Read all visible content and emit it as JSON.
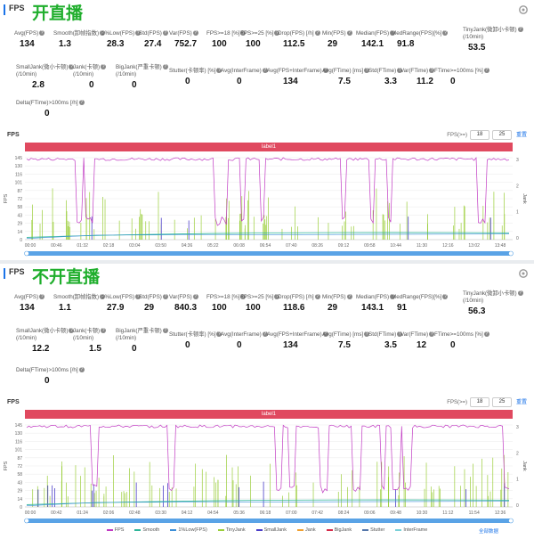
{
  "panels": [
    {
      "section": "FPS",
      "title": "开直播",
      "row1": [
        {
          "label": "Avg(FPS)",
          "value": "134"
        },
        {
          "label": "Smooth(卸帧指数)",
          "value": "1.3"
        },
        {
          "label": "1%Low(FPS)",
          "value": "28.3"
        },
        {
          "label": "Std(FPS)",
          "value": "27.4"
        },
        {
          "label": "Var(FPS)",
          "value": "752.7"
        },
        {
          "label": "FPS>=18 [%]",
          "value": "100"
        },
        {
          "label": "FPS>=25 [%]",
          "value": "100"
        },
        {
          "label": "Drop(FPS) [/h]",
          "value": "112.5"
        },
        {
          "label": "Min(FPS)",
          "value": "29"
        },
        {
          "label": "Median(FPS)",
          "value": "142.1"
        },
        {
          "label": "MedRange(FPS)[%]",
          "value": "91.8"
        },
        {
          "label": "TinyJank(微卸小卡顿)",
          "label2": "(/10min)",
          "value": "53.5"
        }
      ],
      "row2": [
        {
          "label": "SmallJank(微小卡顿)",
          "label2": "(/10min)",
          "value": "2.8"
        },
        {
          "label": "Jank(卡顿)",
          "label2": "(/10min)",
          "value": "0"
        },
        {
          "label": "BigJank(严重卡顿)",
          "label2": "(/10min)",
          "value": "0"
        },
        {
          "label": "Stutter(卡顿率) [%]",
          "value": "0"
        },
        {
          "label": "Avg(InterFrame)",
          "value": "0"
        },
        {
          "label": "Avg(FPS+InterFrame)",
          "value": "134"
        },
        {
          "label": "Avg(FTime) [ms]",
          "value": "7.5"
        },
        {
          "label": "Std(FTime)",
          "value": "3.3"
        },
        {
          "label": "Var(FTime)",
          "value": "11.2"
        },
        {
          "label": "FTime>=100ms [%]",
          "value": "0"
        }
      ],
      "row3": [
        {
          "label": "Delta(FTime)>100ms [/h]",
          "value": "0"
        }
      ],
      "chart_title": "FPS",
      "fps_filter": {
        "label": "FPS(>=)",
        "a": "18",
        "b": "25",
        "reset": "重置"
      },
      "bar_label": "label1",
      "yticks": [
        "145",
        "130",
        "116",
        "101",
        "87",
        "72",
        "58",
        "43",
        "29",
        "14",
        "0"
      ],
      "yaxis": "FPS",
      "rticks": [
        "3",
        "2",
        "1",
        "0"
      ],
      "raxis": "Jank",
      "xticks": [
        "00:00",
        "00:46",
        "01:32",
        "02:18",
        "03:04",
        "03:50",
        "04:36",
        "05:22",
        "06:08",
        "06:54",
        "07:40",
        "08:26",
        "09:12",
        "09:58",
        "10:44",
        "11:30",
        "12:16",
        "13:02",
        "13:48"
      ],
      "reset_zoom": "全部数据",
      "chart_data": {
        "type": "line",
        "series": [
          {
            "name": "FPS",
            "description": "mostly ~142 with frequent drops to ~30"
          }
        ]
      }
    },
    {
      "section": "FPS",
      "title": "不开直播",
      "row1": [
        {
          "label": "Avg(FPS)",
          "value": "134"
        },
        {
          "label": "Smooth(卸帧指数)",
          "value": "1.1"
        },
        {
          "label": "1%Low(FPS)",
          "value": "27.9"
        },
        {
          "label": "Std(FPS)",
          "value": "29"
        },
        {
          "label": "Var(FPS)",
          "value": "840.3"
        },
        {
          "label": "FPS>=18 [%]",
          "value": "100"
        },
        {
          "label": "FPS>=25 [%]",
          "value": "100"
        },
        {
          "label": "Drop(FPS) [/h]",
          "value": "118.6"
        },
        {
          "label": "Min(FPS)",
          "value": "29"
        },
        {
          "label": "Median(FPS)",
          "value": "143.1"
        },
        {
          "label": "MedRange(FPS)[%]",
          "value": "91"
        },
        {
          "label": "TinyJank(微卸小卡顿)",
          "label2": "(/10min)",
          "value": "56.3"
        }
      ],
      "row2": [
        {
          "label": "SmallJank(微小卡顿)",
          "label2": "(/10min)",
          "value": "12.2"
        },
        {
          "label": "Jank(卡顿)",
          "label2": "(/10min)",
          "value": "1.5"
        },
        {
          "label": "BigJank(严重卡顿)",
          "label2": "(/10min)",
          "value": "0"
        },
        {
          "label": "Stutter(卡顿率) [%]",
          "value": "0"
        },
        {
          "label": "Avg(InterFrame)",
          "value": "0"
        },
        {
          "label": "Avg(FPS+InterFrame)",
          "value": "134"
        },
        {
          "label": "Avg(FTime) [ms]",
          "value": "7.5"
        },
        {
          "label": "Std(FTime)",
          "value": "3.5"
        },
        {
          "label": "Var(FTime)",
          "value": "12"
        },
        {
          "label": "FTime>=100ms [%]",
          "value": "0"
        }
      ],
      "row3": [
        {
          "label": "Delta(FTime)>100ms [/h]",
          "value": "0"
        }
      ],
      "chart_title": "FPS",
      "fps_filter": {
        "label": "FPS(>=)",
        "a": "18",
        "b": "25",
        "reset": "重置"
      },
      "bar_label": "label1",
      "yticks": [
        "145",
        "130",
        "116",
        "101",
        "87",
        "72",
        "58",
        "43",
        "29",
        "14",
        "0"
      ],
      "yaxis": "FPS",
      "rticks": [
        "3",
        "2",
        "1",
        "0"
      ],
      "raxis": "Jank",
      "xticks": [
        "00:00",
        "00:42",
        "01:24",
        "02:06",
        "02:48",
        "03:30",
        "04:12",
        "04:54",
        "05:36",
        "06:18",
        "07:00",
        "07:42",
        "08:24",
        "09:06",
        "09:48",
        "10:30",
        "11:12",
        "11:54",
        "12:36"
      ],
      "reset_zoom": "全部数据",
      "chart_data": {
        "type": "line",
        "series": [
          {
            "name": "FPS",
            "description": "mostly ~143 with frequent drops to ~30"
          }
        ]
      }
    }
  ],
  "legend": [
    {
      "name": "FPS",
      "color": "#c13ac3"
    },
    {
      "name": "Smooth",
      "color": "#2fb69a"
    },
    {
      "name": "1%Low(FPS)",
      "color": "#3c8fd8"
    },
    {
      "name": "TinyJank",
      "color": "#9bce3a"
    },
    {
      "name": "SmallJank",
      "color": "#4b3ec8"
    },
    {
      "name": "Jank",
      "color": "#f0a030"
    },
    {
      "name": "BigJank",
      "color": "#d62c4a"
    },
    {
      "name": "Stutter",
      "color": "#5577aa"
    },
    {
      "name": "InterFrame",
      "color": "#7ad0d8"
    }
  ],
  "colors": {
    "accent": "#1a73e8",
    "title_green": "#1fae2c",
    "label_bar": "#e0495f"
  }
}
